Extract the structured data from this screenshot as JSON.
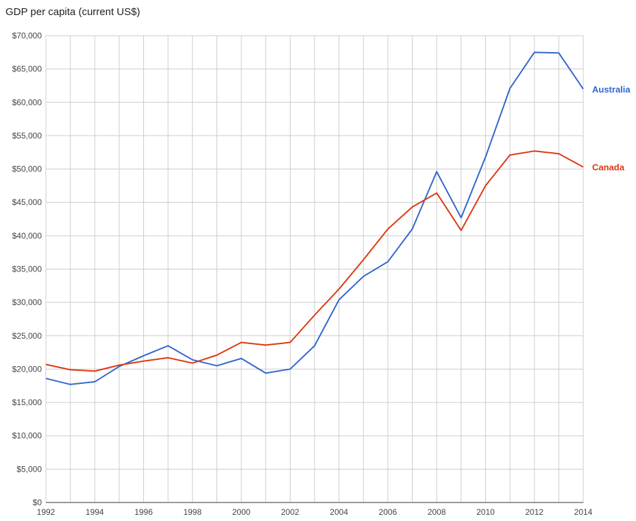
{
  "chart_data": {
    "type": "line",
    "title": "GDP per capita (current US$)",
    "xlabel": "",
    "ylabel": "",
    "x": [
      1992,
      1993,
      1994,
      1995,
      1996,
      1997,
      1998,
      1999,
      2000,
      2001,
      2002,
      2003,
      2004,
      2005,
      2006,
      2007,
      2008,
      2009,
      2010,
      2011,
      2012,
      2013,
      2014
    ],
    "xlim": [
      1992,
      2014
    ],
    "ylim": [
      0,
      70000
    ],
    "x_tick_labels": [
      "1992",
      "1994",
      "1996",
      "1998",
      "2000",
      "2002",
      "2004",
      "2006",
      "2008",
      "2010",
      "2012",
      "2014"
    ],
    "y_tick_labels": [
      "$0",
      "$5,000",
      "$10,000",
      "$15,000",
      "$20,000",
      "$25,000",
      "$30,000",
      "$35,000",
      "$40,000",
      "$45,000",
      "$50,000",
      "$55,000",
      "$60,000",
      "$65,000",
      "$70,000"
    ],
    "grid": true,
    "legend_placement": "right, at line ends",
    "series": [
      {
        "name": "Australia",
        "color": "#3366cc",
        "values": [
          18600,
          17700,
          18100,
          20400,
          22000,
          23500,
          21400,
          20500,
          21600,
          19400,
          20000,
          23500,
          30400,
          33900,
          36100,
          41000,
          49600,
          42700,
          51800,
          62100,
          67500,
          67400,
          62000
        ]
      },
      {
        "name": "Canada",
        "color": "#dc3912",
        "values": [
          20700,
          19900,
          19700,
          20600,
          21200,
          21700,
          20900,
          22100,
          24000,
          23600,
          24000,
          28100,
          32000,
          36400,
          41000,
          44300,
          46400,
          40800,
          47500,
          52100,
          52700,
          52300,
          50300
        ]
      }
    ]
  }
}
